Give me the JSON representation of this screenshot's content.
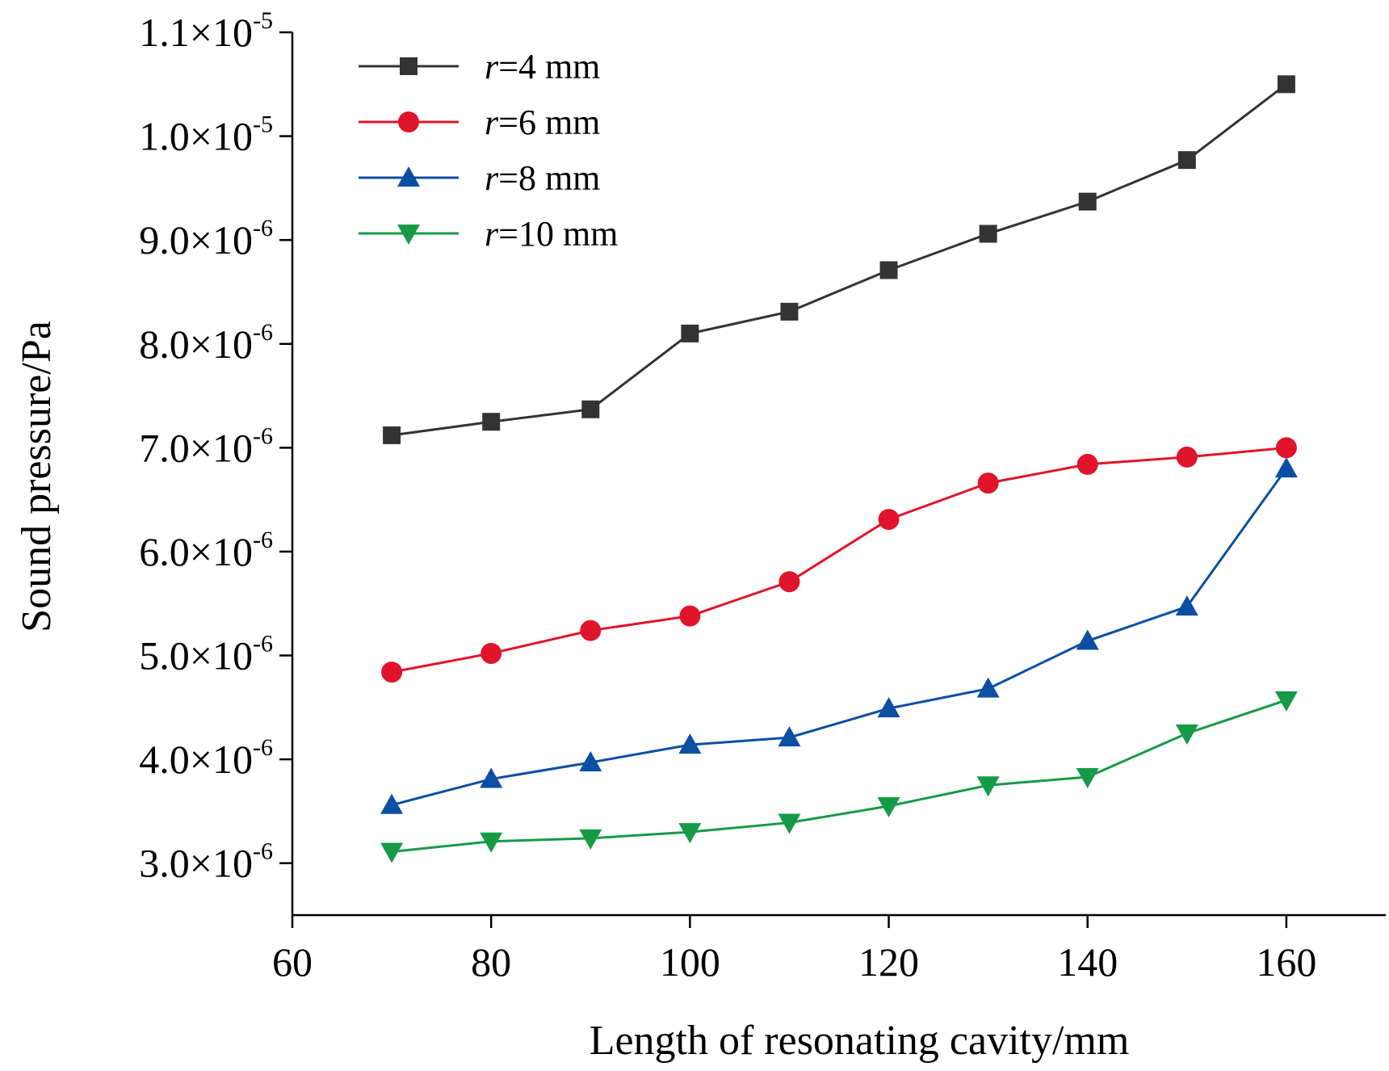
{
  "chart_data": {
    "type": "line",
    "xlabel": "Length of resonating cavity/mm",
    "ylabel": "Sound pressure/Pa",
    "xlim": [
      60,
      170
    ],
    "ylim": [
      2.5e-06,
      1.1e-05
    ],
    "xticks": [
      60,
      80,
      100,
      120,
      140,
      160
    ],
    "yticks": [
      {
        "value": 3e-06,
        "mantissa": "3.0×10",
        "exp": "-6"
      },
      {
        "value": 4e-06,
        "mantissa": "4.0×10",
        "exp": "-6"
      },
      {
        "value": 5e-06,
        "mantissa": "5.0×10",
        "exp": "-6"
      },
      {
        "value": 6e-06,
        "mantissa": "6.0×10",
        "exp": "-6"
      },
      {
        "value": 7e-06,
        "mantissa": "7.0×10",
        "exp": "-6"
      },
      {
        "value": 8e-06,
        "mantissa": "8.0×10",
        "exp": "-6"
      },
      {
        "value": 9e-06,
        "mantissa": "9.0×10",
        "exp": "-6"
      },
      {
        "value": 1e-05,
        "mantissa": "1.0×10",
        "exp": "-5"
      },
      {
        "value": 1.1e-05,
        "mantissa": "1.1×10",
        "exp": "-5"
      }
    ],
    "grid": false,
    "legend_position": "top-left",
    "x": [
      70,
      80,
      90,
      100,
      110,
      120,
      130,
      140,
      150,
      160
    ],
    "series": [
      {
        "name_var": "r",
        "name_rest": "=4 mm",
        "color": "#333333",
        "marker": "square",
        "values": [
          7.12e-06,
          7.25e-06,
          7.37e-06,
          8.1e-06,
          8.31e-06,
          8.71e-06,
          9.06e-06,
          9.37e-06,
          9.77e-06,
          1.05e-05
        ]
      },
      {
        "name_var": "r",
        "name_rest": "=6 mm",
        "color": "#e0142a",
        "marker": "circle",
        "values": [
          4.84e-06,
          5.02e-06,
          5.24e-06,
          5.38e-06,
          5.71e-06,
          6.31e-06,
          6.66e-06,
          6.84e-06,
          6.91e-06,
          7e-06
        ]
      },
      {
        "name_var": "r",
        "name_rest": "=8 mm",
        "color": "#0c4ea2",
        "marker": "triangle-up",
        "values": [
          3.56e-06,
          3.81e-06,
          3.97e-06,
          4.14e-06,
          4.21e-06,
          4.49e-06,
          4.68e-06,
          5.14e-06,
          5.47e-06,
          6.8e-06
        ]
      },
      {
        "name_var": "r",
        "name_rest": "=10 mm",
        "color": "#169a46",
        "marker": "triangle-down",
        "values": [
          3.11e-06,
          3.21e-06,
          3.24e-06,
          3.3e-06,
          3.39e-06,
          3.55e-06,
          3.75e-06,
          3.83e-06,
          4.25e-06,
          4.57e-06
        ]
      }
    ]
  }
}
